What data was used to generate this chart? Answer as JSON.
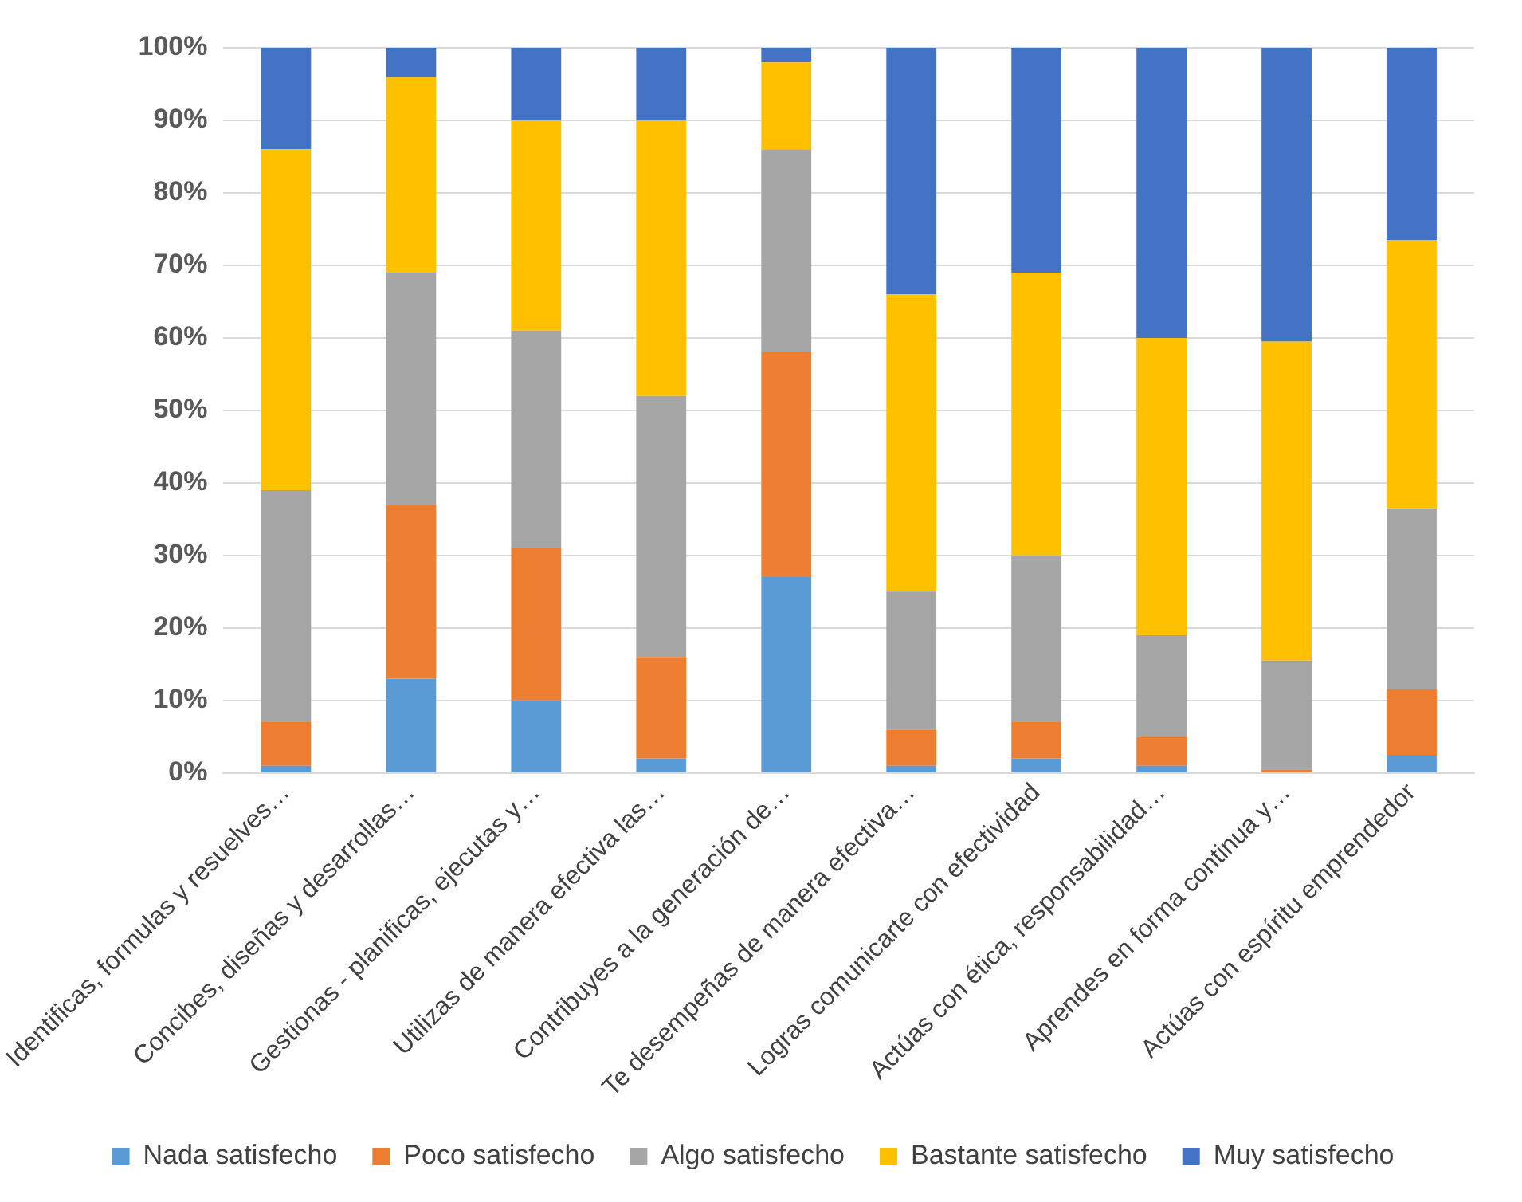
{
  "chart_data": {
    "type": "bar",
    "stacked": true,
    "categories": [
      "Identificas, formulas y resuelves…",
      "Concibes, diseñas y desarrollas…",
      "Gestionas - planificas, ejecutas y…",
      "Utilizas de manera efectiva las…",
      "Contribuyes a la generación de…",
      "Te desempeñas de manera efectiva…",
      "Logras comunicarte con efectividad",
      "Actúas con ética, responsabilidad…",
      "Aprendes en forma continua y…",
      "Actúas con espíritu emprendedor"
    ],
    "series": [
      {
        "name": "Nada satisfecho",
        "color": "#5b9bd5",
        "values": [
          1,
          13,
          10,
          2,
          27,
          1,
          2,
          1,
          0,
          2.5
        ]
      },
      {
        "name": "Poco satisfecho",
        "color": "#ed7d31",
        "values": [
          6,
          24,
          21,
          14,
          31,
          5,
          5,
          4,
          0.5,
          9
        ]
      },
      {
        "name": "Algo satisfecho",
        "color": "#a5a5a5",
        "values": [
          32,
          32,
          30,
          36,
          28,
          19,
          23,
          14,
          15,
          25
        ]
      },
      {
        "name": "Bastante satisfecho",
        "color": "#ffc000",
        "values": [
          47,
          27,
          29,
          38,
          12,
          41,
          39,
          41,
          44,
          37
        ]
      },
      {
        "name": "Muy satisfecho",
        "color": "#4472c4",
        "values": [
          14,
          4,
          10,
          10,
          2,
          34,
          31,
          40,
          40.5,
          26.5
        ]
      }
    ],
    "ylim": [
      0,
      100
    ],
    "yticks": [
      {
        "value": 0,
        "label": "0%"
      },
      {
        "value": 10,
        "label": "10%"
      },
      {
        "value": 20,
        "label": "20%"
      },
      {
        "value": 30,
        "label": "30%"
      },
      {
        "value": 40,
        "label": "40%"
      },
      {
        "value": 50,
        "label": "50%"
      },
      {
        "value": 60,
        "label": "60%"
      },
      {
        "value": 70,
        "label": "70%"
      },
      {
        "value": 80,
        "label": "80%"
      },
      {
        "value": 90,
        "label": "90%"
      },
      {
        "value": 100,
        "label": "100%"
      }
    ],
    "grid": "y",
    "legend": "bottom"
  }
}
